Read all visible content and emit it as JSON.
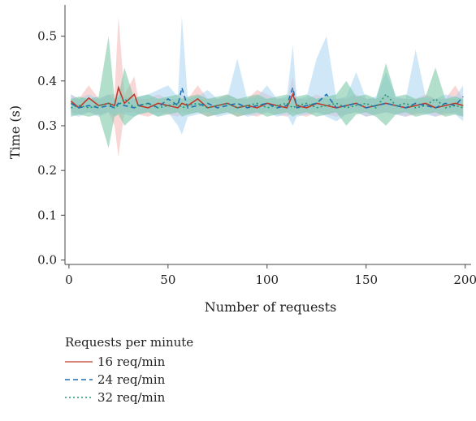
{
  "chart_data": {
    "type": "line",
    "xlabel": "Number of requests",
    "ylabel": "Time (s)",
    "xlim": [
      -2,
      203
    ],
    "ylim": [
      -0.01,
      0.57
    ],
    "xticks": [
      0,
      50,
      100,
      150,
      200
    ],
    "yticks": [
      0.0,
      0.1,
      0.2,
      0.3,
      0.4,
      0.5
    ],
    "xtick_labels": [
      "0",
      "50",
      "100",
      "150",
      "200"
    ],
    "ytick_labels": [
      "0.0",
      "0.1",
      "0.2",
      "0.3",
      "0.4",
      "0.5"
    ],
    "x": [
      1,
      5,
      10,
      15,
      20,
      23,
      25,
      28,
      33,
      35,
      40,
      45,
      50,
      55,
      57,
      60,
      65,
      70,
      75,
      80,
      85,
      90,
      95,
      100,
      105,
      110,
      113,
      115,
      120,
      125,
      130,
      135,
      140,
      145,
      150,
      155,
      160,
      165,
      170,
      175,
      180,
      185,
      190,
      195,
      199
    ],
    "series": [
      {
        "name": "16 req/min",
        "color": "#c0392b",
        "dash": "solid",
        "band_color": "#f4b6b6",
        "values": [
          0.355,
          0.34,
          0.362,
          0.345,
          0.35,
          0.345,
          0.385,
          0.35,
          0.37,
          0.345,
          0.34,
          0.35,
          0.345,
          0.34,
          0.35,
          0.345,
          0.36,
          0.34,
          0.345,
          0.35,
          0.34,
          0.345,
          0.34,
          0.35,
          0.345,
          0.34,
          0.37,
          0.345,
          0.34,
          0.35,
          0.345,
          0.34,
          0.345,
          0.35,
          0.34,
          0.345,
          0.35,
          0.345,
          0.34,
          0.345,
          0.35,
          0.34,
          0.345,
          0.35,
          0.345
        ],
        "lower": [
          0.33,
          0.325,
          0.33,
          0.325,
          0.33,
          0.3,
          0.23,
          0.33,
          0.33,
          0.325,
          0.32,
          0.33,
          0.325,
          0.32,
          0.33,
          0.325,
          0.33,
          0.32,
          0.325,
          0.33,
          0.32,
          0.325,
          0.32,
          0.33,
          0.325,
          0.32,
          0.33,
          0.325,
          0.32,
          0.33,
          0.325,
          0.32,
          0.325,
          0.33,
          0.32,
          0.325,
          0.33,
          0.325,
          0.32,
          0.325,
          0.33,
          0.32,
          0.325,
          0.33,
          0.32
        ],
        "upper": [
          0.37,
          0.36,
          0.39,
          0.36,
          0.37,
          0.37,
          0.545,
          0.37,
          0.41,
          0.36,
          0.36,
          0.37,
          0.36,
          0.36,
          0.37,
          0.36,
          0.39,
          0.36,
          0.36,
          0.37,
          0.36,
          0.36,
          0.38,
          0.37,
          0.36,
          0.36,
          0.41,
          0.36,
          0.36,
          0.37,
          0.36,
          0.36,
          0.36,
          0.37,
          0.36,
          0.36,
          0.37,
          0.36,
          0.36,
          0.36,
          0.37,
          0.36,
          0.36,
          0.39,
          0.36
        ]
      },
      {
        "name": "24 req/min",
        "color": "#1f6fb4",
        "dash": "6,4",
        "band_color": "#a9d4f2",
        "values": [
          0.35,
          0.34,
          0.345,
          0.34,
          0.345,
          0.34,
          0.35,
          0.345,
          0.34,
          0.345,
          0.35,
          0.34,
          0.36,
          0.345,
          0.385,
          0.34,
          0.345,
          0.35,
          0.34,
          0.345,
          0.35,
          0.34,
          0.345,
          0.35,
          0.34,
          0.345,
          0.385,
          0.34,
          0.345,
          0.35,
          0.37,
          0.34,
          0.345,
          0.35,
          0.34,
          0.345,
          0.35,
          0.345,
          0.34,
          0.35,
          0.345,
          0.34,
          0.35,
          0.345,
          0.365
        ],
        "lower": [
          0.325,
          0.32,
          0.33,
          0.32,
          0.33,
          0.32,
          0.33,
          0.325,
          0.32,
          0.325,
          0.33,
          0.32,
          0.33,
          0.3,
          0.28,
          0.32,
          0.325,
          0.33,
          0.32,
          0.325,
          0.33,
          0.32,
          0.325,
          0.33,
          0.32,
          0.325,
          0.3,
          0.32,
          0.325,
          0.33,
          0.32,
          0.31,
          0.325,
          0.33,
          0.32,
          0.325,
          0.33,
          0.325,
          0.32,
          0.33,
          0.325,
          0.32,
          0.33,
          0.325,
          0.31
        ],
        "upper": [
          0.37,
          0.36,
          0.37,
          0.36,
          0.37,
          0.36,
          0.37,
          0.365,
          0.36,
          0.365,
          0.37,
          0.38,
          0.39,
          0.365,
          0.545,
          0.36,
          0.365,
          0.38,
          0.36,
          0.365,
          0.45,
          0.36,
          0.365,
          0.39,
          0.36,
          0.365,
          0.48,
          0.36,
          0.365,
          0.45,
          0.5,
          0.36,
          0.365,
          0.42,
          0.36,
          0.365,
          0.42,
          0.365,
          0.36,
          0.47,
          0.365,
          0.36,
          0.37,
          0.365,
          0.39
        ]
      },
      {
        "name": "32 req/min",
        "color": "#1e9977",
        "dash": "2,3",
        "band_color": "#72c4a2",
        "values": [
          0.34,
          0.345,
          0.34,
          0.345,
          0.35,
          0.34,
          0.345,
          0.36,
          0.34,
          0.345,
          0.35,
          0.34,
          0.345,
          0.35,
          0.34,
          0.345,
          0.35,
          0.34,
          0.345,
          0.35,
          0.34,
          0.345,
          0.35,
          0.34,
          0.345,
          0.35,
          0.34,
          0.345,
          0.35,
          0.34,
          0.345,
          0.35,
          0.34,
          0.345,
          0.35,
          0.34,
          0.37,
          0.345,
          0.35,
          0.34,
          0.345,
          0.36,
          0.34,
          0.345,
          0.34
        ],
        "lower": [
          0.32,
          0.325,
          0.32,
          0.325,
          0.25,
          0.32,
          0.325,
          0.3,
          0.32,
          0.325,
          0.33,
          0.32,
          0.325,
          0.33,
          0.32,
          0.325,
          0.33,
          0.32,
          0.325,
          0.33,
          0.32,
          0.325,
          0.33,
          0.32,
          0.325,
          0.33,
          0.32,
          0.325,
          0.33,
          0.32,
          0.325,
          0.33,
          0.3,
          0.325,
          0.33,
          0.32,
          0.3,
          0.325,
          0.33,
          0.32,
          0.325,
          0.33,
          0.32,
          0.325,
          0.32
        ],
        "upper": [
          0.36,
          0.365,
          0.36,
          0.365,
          0.5,
          0.36,
          0.365,
          0.43,
          0.36,
          0.365,
          0.37,
          0.36,
          0.365,
          0.37,
          0.36,
          0.365,
          0.37,
          0.36,
          0.365,
          0.37,
          0.36,
          0.365,
          0.37,
          0.36,
          0.365,
          0.37,
          0.36,
          0.365,
          0.37,
          0.36,
          0.365,
          0.37,
          0.4,
          0.365,
          0.37,
          0.36,
          0.44,
          0.365,
          0.37,
          0.36,
          0.365,
          0.43,
          0.36,
          0.365,
          0.36
        ]
      }
    ],
    "legend": {
      "title": "Requests per minute",
      "position": "bottom-left"
    },
    "grid": false
  }
}
